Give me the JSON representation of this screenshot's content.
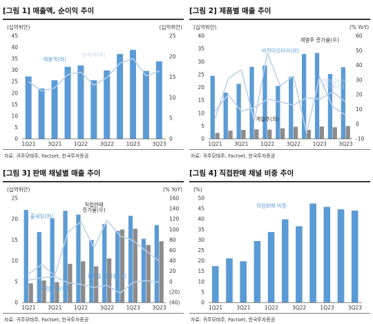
{
  "colors": {
    "bar_blue": "#5b9bd5",
    "bar_gray": "#8c8c8c",
    "line_light": "#bccfe6",
    "label_blue": "#5b9bd5",
    "label_dark": "#333333"
  },
  "charts": [
    {
      "id": "chart1",
      "title": "[그림 1] 매출액, 순이익 추이",
      "source": "자료: 귀주모태주, Factset, 한국투자증권",
      "chart_data": {
        "type": "bar",
        "categories": [
          "1Q21",
          "2Q21",
          "3Q21",
          "4Q21",
          "1Q22",
          "2Q22",
          "3Q22",
          "4Q22",
          "1Q23",
          "2Q23",
          "3Q23"
        ],
        "x_tick_labels": [
          "1Q21",
          "",
          "3Q21",
          "",
          "1Q22",
          "",
          "3Q22",
          "",
          "1Q23",
          "",
          "3Q23"
        ],
        "left_axis": {
          "unit": "(십억위안)",
          "min": 0,
          "max": 45,
          "ticks": [
            0,
            5,
            10,
            15,
            20,
            25,
            30,
            35,
            40,
            45
          ]
        },
        "right_axis": {
          "unit": "(십억위안)",
          "min": 0,
          "max": 25,
          "ticks": [
            0,
            5,
            10,
            15,
            20,
            25
          ]
        },
        "series": [
          {
            "name": "매출액(좌)",
            "kind": "bar",
            "axis": "left",
            "color": "#5b9bd5",
            "values": [
              27.3,
              22.0,
              25.6,
              31.5,
              32.1,
              25.6,
              29.9,
              37.1,
              38.9,
              29.7,
              33.9
            ]
          },
          {
            "name": "순이익(우)",
            "kind": "line",
            "axis": "right",
            "color": "#bccfe6",
            "values": [
              13.9,
              11.6,
              12.4,
              15.6,
              16.2,
              13.0,
              14.9,
              18.4,
              19.5,
              15.3,
              16.5
            ]
          }
        ],
        "annotations": [
          {
            "text": "매출액(좌)",
            "series": 0,
            "at": 2,
            "value": 34,
            "axis": "left",
            "color": "#5b9bd5"
          },
          {
            "text": "순이익(우)",
            "series": 1,
            "at": 5,
            "value": 20,
            "axis": "right",
            "color": "#bccfe6"
          }
        ]
      }
    },
    {
      "id": "chart2",
      "title": "[그림 2] 제품별 매출 추이",
      "source": "자료: 귀주모태주, Factset, 한국투자증권",
      "chart_data": {
        "type": "bar",
        "categories": [
          "1Q21",
          "2Q21",
          "3Q21",
          "4Q21",
          "1Q22",
          "2Q22",
          "3Q22",
          "4Q22",
          "1Q23",
          "2Q23",
          "3Q23"
        ],
        "x_tick_labels": [
          "1Q21",
          "",
          "3Q21",
          "",
          "1Q22",
          "",
          "3Q22",
          "",
          "1Q23",
          "",
          "3Q23"
        ],
        "left_axis": {
          "unit": "(십억위안)",
          "min": 0,
          "max": 40,
          "ticks": [
            0,
            5,
            10,
            15,
            20,
            25,
            30,
            35,
            40
          ]
        },
        "right_axis": {
          "unit": "(% YoY)",
          "min": -10,
          "max": 60,
          "ticks": [
            -10,
            0,
            10,
            20,
            30,
            40,
            50,
            60
          ]
        },
        "series": [
          {
            "name": "비천마오타이(좌)",
            "kind": "bar",
            "axis": "left",
            "color": "#5b9bd5",
            "values": [
              24.5,
              18.0,
              21.4,
              28.0,
              28.5,
              20.6,
              24.1,
              33.0,
              33.4,
              25.2,
              27.8
            ]
          },
          {
            "name": "계열주(좌)",
            "kind": "bar",
            "axis": "left",
            "color": "#8c8c8c",
            "values": [
              2.3,
              3.2,
              3.5,
              3.7,
              3.6,
              4.1,
              4.7,
              3.5,
              4.8,
              4.5,
              5.0
            ]
          },
          {
            "name": "계열주 증가율(우)",
            "kind": "line",
            "axis": "right",
            "color": "#bccfe6",
            "values": [
              4,
              31,
              37,
              2,
              48,
              26,
              33,
              -6,
              32,
              12,
              6
            ]
          },
          {
            "name": "비천마오타이 증가율(우)",
            "kind": "line",
            "axis": "right",
            "color": "#bccfe6",
            "values": [
              9,
              20,
              9,
              11,
              17,
              15,
              13,
              18,
              17,
              22,
              15
            ]
          }
        ],
        "annotations": [
          {
            "text": "계열주 증가율(우)",
            "series": 2,
            "at": 8,
            "value": 56,
            "axis": "right",
            "color": "#333333"
          },
          {
            "text": "비천마오타이(좌)",
            "series": 0,
            "at": 5,
            "value": 33.5,
            "axis": "left",
            "color": "#5b9bd5"
          },
          {
            "text": "계열주(좌)",
            "series": 1,
            "at": 4,
            "value": 7,
            "axis": "left",
            "color": "#333333"
          },
          {
            "text": "비천마오타이",
            "series": 3,
            "at": 9,
            "value": 28,
            "axis": "right",
            "color": "#bccfe6"
          },
          {
            "text": "증가율(우)",
            "series": 3,
            "at": 9,
            "value": 24.5,
            "axis": "right",
            "color": "#bccfe6"
          }
        ]
      }
    },
    {
      "id": "chart3",
      "title": "[그림 3] 판매 채널별 매출 추이",
      "source": "자료: 귀주모태주, Factset, 한국투자증권",
      "chart_data": {
        "type": "bar",
        "categories": [
          "1Q21",
          "2Q21",
          "3Q21",
          "4Q21",
          "1Q22",
          "2Q22",
          "3Q22",
          "4Q22",
          "1Q23",
          "2Q23",
          "3Q23"
        ],
        "x_tick_labels": [
          "1Q21",
          "",
          "3Q21",
          "",
          "1Q22",
          "",
          "3Q22",
          "",
          "1Q23",
          "",
          "3Q23"
        ],
        "left_axis": {
          "unit": "(십억위안)",
          "min": 0,
          "max": 25,
          "ticks": [
            0,
            5,
            10,
            15,
            20,
            25
          ]
        },
        "right_axis": {
          "unit": "(% YoY)",
          "min": -40,
          "max": 160,
          "ticks": [
            -40,
            -20,
            0,
            20,
            40,
            60,
            80,
            100,
            120,
            140,
            160
          ]
        },
        "right_tick_labels": [
          "(40)",
          "(20)",
          "0",
          "20",
          "40",
          "60",
          "80",
          "100",
          "120",
          "140",
          "160"
        ],
        "series": [
          {
            "name": "홀세일(좌)",
            "kind": "bar",
            "axis": "left",
            "color": "#5b9bd5",
            "values": [
              22.2,
              16.9,
              20.2,
              22.0,
              21.1,
              15.0,
              18.8,
              17.2,
              20.8,
              15.3,
              18.6
            ]
          },
          {
            "name": "직접판매(좌)",
            "kind": "bar",
            "axis": "left",
            "color": "#8c8c8c",
            "values": [
              4.6,
              5.3,
              4.9,
              9.3,
              9.9,
              8.7,
              10.6,
              17.5,
              17.7,
              13.8,
              14.7
            ]
          },
          {
            "name": "직접판매 증가율(우)",
            "kind": "line",
            "axis": "right",
            "color": "#bccfe6",
            "values": [
              15,
              33,
              12,
              95,
              115,
              65,
              118,
              88,
              79,
              59,
              39
            ]
          },
          {
            "name": "홀세일 증가율(우)",
            "kind": "line",
            "axis": "right",
            "color": "#bccfe6",
            "values": [
              3,
              8,
              10,
              -2,
              -5,
              -11,
              -7,
              -22,
              -1,
              2,
              -1
            ]
          }
        ],
        "annotations": [
          {
            "text": "홀세일(좌)",
            "series": 0,
            "at": 1,
            "value": 20.3,
            "axis": "left",
            "color": "#5b9bd5"
          },
          {
            "text": "직접판매",
            "series": 2,
            "at": 5,
            "value": 144,
            "axis": "right",
            "color": "#333333"
          },
          {
            "text": "증가율(우)",
            "series": 2,
            "at": 5,
            "value": 134,
            "axis": "right",
            "color": "#333333"
          },
          {
            "text": "홀세일 증가율(우)",
            "series": 3,
            "at": 6,
            "value": 8,
            "axis": "right",
            "color": "#5b9bd5"
          },
          {
            "text": "직접판매(좌)",
            "series": 1,
            "at": 2,
            "value": 2.9,
            "axis": "left",
            "color": "#5b9bd5"
          }
        ]
      }
    },
    {
      "id": "chart4",
      "title": "[그림 4] 직접판매 채널 비중 추이",
      "source": "자료: 귀주모태주, Factset, 한국투자증권",
      "chart_data": {
        "type": "bar",
        "categories": [
          "1Q21",
          "2Q21",
          "3Q21",
          "4Q21",
          "1Q22",
          "2Q22",
          "3Q22",
          "4Q22",
          "1Q23",
          "2Q23",
          "3Q23"
        ],
        "x_tick_labels": [
          "1Q21",
          "",
          "3Q21",
          "",
          "1Q22",
          "",
          "3Q22",
          "",
          "1Q23",
          "",
          "3Q23"
        ],
        "left_axis": {
          "unit": "(%)",
          "min": 0,
          "max": 50,
          "ticks": [
            0,
            5,
            10,
            15,
            20,
            25,
            30,
            35,
            40,
            45,
            50
          ]
        },
        "series": [
          {
            "name": "직접판매 비중",
            "kind": "bar",
            "axis": "left",
            "color": "#5b9bd5",
            "values": [
              17.5,
              21.2,
              19.8,
              29.5,
              33.8,
              39.9,
              36.6,
              47.5,
              45.9,
              44.7,
              44.1
            ]
          }
        ],
        "annotations": [
          {
            "text": "직접판매 비중",
            "series": 0,
            "at": 4,
            "value": 45.5,
            "axis": "left",
            "color": "#5b9bd5"
          }
        ]
      }
    }
  ]
}
